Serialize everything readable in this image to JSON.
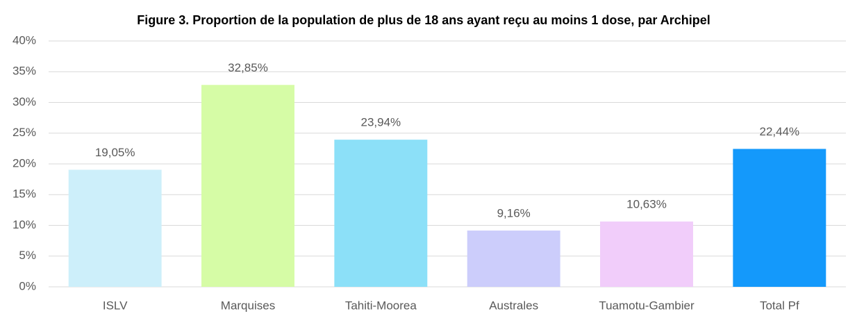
{
  "chart_data": {
    "type": "bar",
    "title": "Figure 3. Proportion de la population de plus de 18 ans ayant reçu au moins 1 dose, par Archipel",
    "categories": [
      "ISLV",
      "Marquises",
      "Tahiti-Moorea",
      "Australes",
      "Tuamotu-Gambier",
      "Total Pf"
    ],
    "values": [
      19.05,
      32.85,
      23.94,
      9.16,
      10.63,
      22.44
    ],
    "value_labels": [
      "19,05%",
      "32,85%",
      "23,94%",
      "9,16%",
      "10,63%",
      "22,44%"
    ],
    "colors": [
      "#cdeffa",
      "#d6fca6",
      "#8ce0f8",
      "#cccdfb",
      "#f1cdfa",
      "#1499fb"
    ],
    "ylim": [
      0,
      40
    ],
    "yticks": [
      {
        "value": 0,
        "label": "0%"
      },
      {
        "value": 5,
        "label": "5%"
      },
      {
        "value": 10,
        "label": "10%"
      },
      {
        "value": 15,
        "label": "15%"
      },
      {
        "value": 20,
        "label": "20%"
      },
      {
        "value": 25,
        "label": "25%"
      },
      {
        "value": 30,
        "label": "30%"
      },
      {
        "value": 35,
        "label": "35%"
      },
      {
        "value": 40,
        "label": "40%"
      }
    ],
    "grid": true
  }
}
